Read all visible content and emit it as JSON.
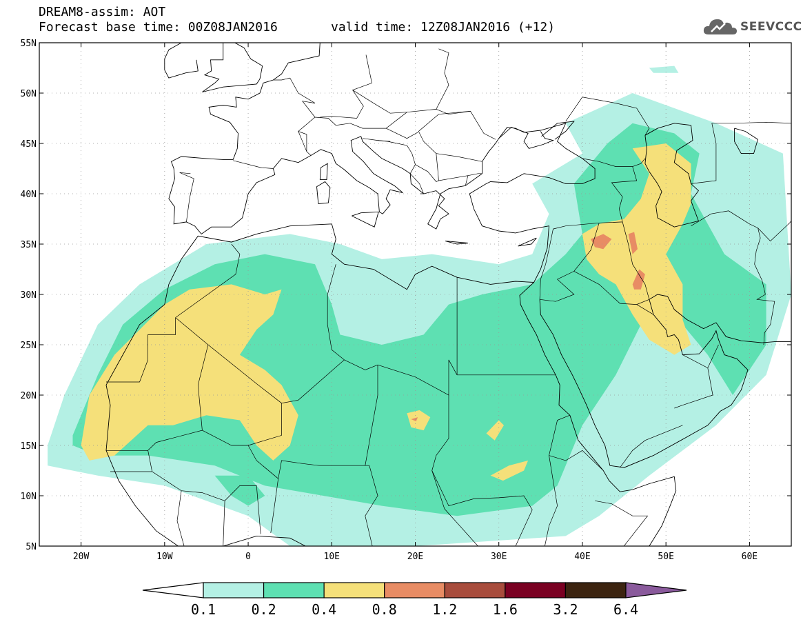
{
  "title": {
    "line1": "DREAM8-assim: AOT",
    "line2": "Forecast base time: 00Z08JAN2016",
    "valid": "valid time: 12Z08JAN2016 (+12)"
  },
  "logo": {
    "name": "cloud-logo-icon",
    "text": "SEEVCCC"
  },
  "map_extent": {
    "lon_min": -25,
    "lon_max": 65,
    "lat_min": 5,
    "lat_max": 55
  },
  "lat_ticks": [
    {
      "v": 55,
      "label": "55N"
    },
    {
      "v": 50,
      "label": "50N"
    },
    {
      "v": 45,
      "label": "45N"
    },
    {
      "v": 40,
      "label": "40N"
    },
    {
      "v": 35,
      "label": "35N"
    },
    {
      "v": 30,
      "label": "30N"
    },
    {
      "v": 25,
      "label": "25N"
    },
    {
      "v": 20,
      "label": "20N"
    },
    {
      "v": 15,
      "label": "15N"
    },
    {
      "v": 10,
      "label": "10N"
    },
    {
      "v": 5,
      "label": "5N"
    }
  ],
  "lon_ticks": [
    {
      "v": -20,
      "label": "20W"
    },
    {
      "v": -10,
      "label": "10W"
    },
    {
      "v": 0,
      "label": "0"
    },
    {
      "v": 10,
      "label": "10E"
    },
    {
      "v": 20,
      "label": "20E"
    },
    {
      "v": 30,
      "label": "30E"
    },
    {
      "v": 40,
      "label": "40E"
    },
    {
      "v": 50,
      "label": "50E"
    },
    {
      "v": 60,
      "label": "60E"
    }
  ],
  "colorbar": {
    "levels": [
      "0.1",
      "0.2",
      "0.4",
      "0.8",
      "1.2",
      "1.6",
      "3.2",
      "6.4"
    ],
    "colors": [
      "#ffffff",
      "#b4f0e4",
      "#5ee0b2",
      "#f5e07a",
      "#e88c64",
      "#a84c3c",
      "#7a0022",
      "#3c2410",
      "#8a5a9c"
    ]
  },
  "aot_fields": [
    {
      "level": "0.1-0.2",
      "color": "#b4f0e4",
      "polygons": [
        [
          [
            -24,
            15
          ],
          [
            -22,
            20
          ],
          [
            -18,
            27
          ],
          [
            -13,
            31
          ],
          [
            -5,
            35
          ],
          [
            5,
            36
          ],
          [
            11,
            35
          ],
          [
            16,
            33.5
          ],
          [
            22,
            34
          ],
          [
            30,
            33
          ],
          [
            34,
            34
          ],
          [
            36,
            38
          ],
          [
            34,
            41
          ],
          [
            40,
            44
          ],
          [
            38,
            47
          ],
          [
            46,
            50
          ],
          [
            56,
            47
          ],
          [
            64,
            44
          ],
          [
            65,
            30
          ],
          [
            62,
            22
          ],
          [
            56,
            17
          ],
          [
            48,
            12
          ],
          [
            42,
            8
          ],
          [
            38,
            6
          ],
          [
            20,
            5
          ],
          [
            5,
            5
          ],
          [
            0,
            8
          ],
          [
            -10,
            11
          ],
          [
            -18,
            12
          ],
          [
            -24,
            13
          ]
        ],
        [
          [
            48,
            52.5
          ],
          [
            51,
            52.7
          ],
          [
            51.5,
            52
          ],
          [
            48.5,
            52
          ]
        ]
      ]
    },
    {
      "level": "0.2-0.4",
      "color": "#5ee0b2",
      "polygons": [
        [
          [
            -21,
            16
          ],
          [
            -18,
            22
          ],
          [
            -15,
            27
          ],
          [
            -10,
            30.5
          ],
          [
            -4,
            33
          ],
          [
            2,
            34
          ],
          [
            8,
            33
          ],
          [
            10,
            29
          ],
          [
            11,
            26
          ],
          [
            16,
            25
          ],
          [
            21,
            26
          ],
          [
            24,
            29
          ],
          [
            28,
            30
          ],
          [
            34,
            31
          ],
          [
            38,
            34
          ],
          [
            40,
            36
          ],
          [
            39,
            41
          ],
          [
            43,
            45
          ],
          [
            46,
            47
          ],
          [
            51,
            46
          ],
          [
            54,
            44
          ],
          [
            53,
            40
          ],
          [
            57,
            34
          ],
          [
            62,
            31
          ],
          [
            62,
            25
          ],
          [
            58,
            20
          ],
          [
            55,
            24
          ],
          [
            51,
            28
          ],
          [
            47,
            27
          ],
          [
            44,
            22
          ],
          [
            40,
            17
          ],
          [
            37,
            11
          ],
          [
            34,
            9
          ],
          [
            25,
            8
          ],
          [
            16,
            9
          ],
          [
            9,
            10
          ],
          [
            2,
            11
          ],
          [
            -4,
            13
          ],
          [
            -12,
            14
          ],
          [
            -18,
            14
          ],
          [
            -21,
            15
          ]
        ],
        [
          [
            -4,
            12
          ],
          [
            -2,
            10
          ],
          [
            0,
            9
          ],
          [
            2,
            10
          ],
          [
            0,
            12
          ]
        ]
      ]
    },
    {
      "level": "0.4-0.8",
      "color": "#f5e07a",
      "polygons": [
        [
          [
            -20,
            15
          ],
          [
            -19,
            20
          ],
          [
            -16,
            24
          ],
          [
            -13,
            26.5
          ],
          [
            -10,
            29
          ],
          [
            -7,
            30.5
          ],
          [
            -2,
            31
          ],
          [
            2,
            30
          ],
          [
            4,
            30.5
          ],
          [
            3,
            28
          ],
          [
            1,
            26.5
          ],
          [
            -1,
            24
          ],
          [
            2,
            22.5
          ],
          [
            4,
            21
          ],
          [
            6,
            18
          ],
          [
            5,
            15
          ],
          [
            3,
            13.5
          ],
          [
            1,
            15
          ],
          [
            -1,
            17.5
          ],
          [
            -5,
            18
          ],
          [
            -9,
            17
          ],
          [
            -12,
            17
          ],
          [
            -16,
            14
          ],
          [
            -19,
            13.5
          ]
        ],
        [
          [
            19,
            18.2
          ],
          [
            20.5,
            18.5
          ],
          [
            21.8,
            17.8
          ],
          [
            21,
            16.5
          ],
          [
            19.5,
            16.8
          ]
        ],
        [
          [
            29,
            12
          ],
          [
            31.2,
            13
          ],
          [
            33.5,
            13.5
          ],
          [
            33,
            12.5
          ],
          [
            30.5,
            11.5
          ]
        ],
        [
          [
            28.5,
            16.2
          ],
          [
            30,
            17.5
          ],
          [
            30.6,
            17
          ],
          [
            29.5,
            15.5
          ]
        ],
        [
          [
            40,
            36
          ],
          [
            42,
            37
          ],
          [
            45,
            37.5
          ],
          [
            47,
            39.5
          ],
          [
            48,
            42
          ],
          [
            46,
            44.5
          ],
          [
            50,
            45
          ],
          [
            53,
            43
          ],
          [
            53,
            39
          ],
          [
            52,
            37
          ],
          [
            50,
            34
          ],
          [
            52,
            31
          ],
          [
            52,
            27.5
          ],
          [
            53,
            25
          ],
          [
            51,
            24
          ],
          [
            48,
            25.5
          ],
          [
            46,
            28
          ],
          [
            44,
            31
          ],
          [
            42,
            32
          ],
          [
            40.5,
            33.5
          ]
        ]
      ]
    },
    {
      "level": "0.8-1.2",
      "color": "#e88c64",
      "polygons": [
        [
          [
            41,
            35.5
          ],
          [
            42.5,
            36
          ],
          [
            43.5,
            35.5
          ],
          [
            42.5,
            34.5
          ],
          [
            41.5,
            34.7
          ]
        ],
        [
          [
            46,
            31
          ],
          [
            46.8,
            32.5
          ],
          [
            47.5,
            32
          ],
          [
            47,
            30.5
          ],
          [
            46.2,
            30.5
          ]
        ],
        [
          [
            45.5,
            36
          ],
          [
            46.2,
            36.2
          ],
          [
            46.6,
            34.5
          ],
          [
            46,
            34
          ]
        ],
        [
          [
            19.5,
            17.6
          ],
          [
            20.3,
            17.8
          ],
          [
            20.1,
            17.4
          ]
        ]
      ]
    }
  ]
}
